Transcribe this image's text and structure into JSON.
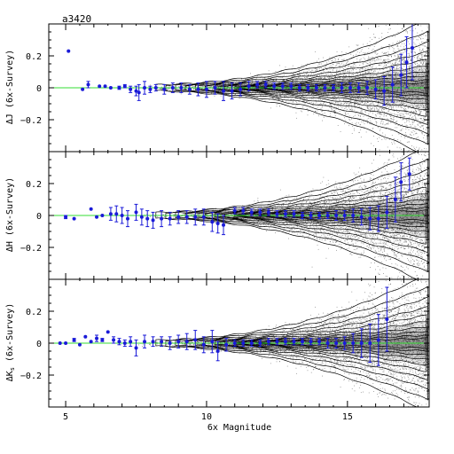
{
  "figure_label": "a3420",
  "colors": {
    "axis": "#000000",
    "points": "#1a1ad8",
    "zero_line": "#33dd33",
    "contour": "#000000",
    "scatter": "#444444"
  },
  "chart_data": [
    {
      "type": "scatter",
      "ylabel": "ΔJ (6x-Survey)",
      "xlim": [
        4.4,
        17.9
      ],
      "ylim": [
        -0.4,
        0.4
      ],
      "yticks": [
        -0.2,
        0,
        0.2
      ],
      "ytick_labels": [
        "−0.2",
        "0",
        "0.2"
      ],
      "reference_line": 0,
      "series": [
        {
          "x": [
            5.1,
            5.6,
            5.8,
            6.2,
            6.4,
            6.6,
            6.9,
            7.1,
            7.3,
            7.5,
            7.6,
            7.8,
            8.0,
            8.2,
            8.5,
            8.8,
            9.1,
            9.4,
            9.7,
            10.0,
            10.3,
            10.6,
            10.9,
            11.2,
            11.5,
            11.8,
            12.1,
            12.4,
            12.7,
            13.0,
            13.3,
            13.6,
            13.9,
            14.2,
            14.5,
            14.8,
            15.1,
            15.4,
            15.7,
            16.0,
            16.3,
            16.6,
            16.9,
            17.1,
            17.3
          ],
          "y": [
            0.23,
            -0.01,
            0.02,
            0.01,
            0.01,
            0.0,
            0.0,
            0.01,
            -0.01,
            -0.02,
            -0.03,
            0.0,
            -0.01,
            0.0,
            -0.01,
            0.0,
            0.0,
            -0.01,
            -0.01,
            -0.01,
            0.0,
            -0.02,
            -0.02,
            -0.01,
            0.01,
            0.02,
            0.02,
            0.01,
            0.01,
            0.01,
            0.0,
            0.0,
            0.0,
            0.0,
            0.0,
            0.0,
            0.0,
            0.0,
            0.0,
            -0.01,
            -0.02,
            0.02,
            0.08,
            0.16,
            0.25
          ],
          "yerr": [
            0.0,
            0.0,
            0.02,
            0.0,
            0.0,
            0.0,
            0.01,
            0.01,
            0.02,
            0.03,
            0.05,
            0.04,
            0.02,
            0.02,
            0.03,
            0.03,
            0.03,
            0.03,
            0.04,
            0.05,
            0.04,
            0.06,
            0.05,
            0.04,
            0.03,
            0.02,
            0.02,
            0.02,
            0.02,
            0.02,
            0.02,
            0.02,
            0.02,
            0.02,
            0.02,
            0.03,
            0.03,
            0.03,
            0.04,
            0.06,
            0.09,
            0.11,
            0.13,
            0.16,
            0.2
          ]
        }
      ]
    },
    {
      "type": "scatter",
      "ylabel": "ΔH (6x-Survey)",
      "xlim": [
        4.4,
        17.9
      ],
      "ylim": [
        -0.4,
        0.4
      ],
      "yticks": [
        -0.2,
        0,
        0.2
      ],
      "ytick_labels": [
        "−0.2",
        "0",
        "0.2"
      ],
      "reference_line": 0,
      "series": [
        {
          "x": [
            5.0,
            5.3,
            5.9,
            6.1,
            6.3,
            6.6,
            6.8,
            7.0,
            7.2,
            7.5,
            7.7,
            7.9,
            8.1,
            8.4,
            8.7,
            9.0,
            9.3,
            9.6,
            9.9,
            10.2,
            10.4,
            10.6,
            11.0,
            11.3,
            11.6,
            11.9,
            12.2,
            12.5,
            12.8,
            13.1,
            13.4,
            13.7,
            14.0,
            14.3,
            14.6,
            14.9,
            15.2,
            15.5,
            15.8,
            16.1,
            16.4,
            16.7,
            16.9,
            17.2
          ],
          "y": [
            -0.01,
            -0.02,
            0.04,
            -0.01,
            0.0,
            0.01,
            0.01,
            0.0,
            -0.02,
            0.02,
            -0.01,
            -0.02,
            -0.03,
            -0.02,
            -0.02,
            -0.01,
            -0.01,
            -0.01,
            -0.01,
            -0.04,
            -0.05,
            -0.06,
            0.03,
            0.03,
            0.02,
            0.02,
            0.02,
            0.01,
            0.01,
            0.01,
            0.0,
            0.0,
            0.0,
            0.0,
            0.0,
            0.0,
            0.0,
            -0.01,
            -0.02,
            -0.02,
            0.02,
            0.1,
            0.21,
            0.26
          ],
          "yerr": [
            0.01,
            0.0,
            0.0,
            0.0,
            0.0,
            0.04,
            0.05,
            0.05,
            0.05,
            0.05,
            0.05,
            0.05,
            0.05,
            0.05,
            0.04,
            0.04,
            0.04,
            0.05,
            0.05,
            0.06,
            0.06,
            0.06,
            0.02,
            0.02,
            0.02,
            0.02,
            0.02,
            0.02,
            0.02,
            0.02,
            0.02,
            0.02,
            0.02,
            0.02,
            0.03,
            0.03,
            0.04,
            0.05,
            0.07,
            0.08,
            0.1,
            0.14,
            0.12,
            0.1
          ]
        }
      ]
    },
    {
      "type": "scatter",
      "ylabel": "ΔK_s (6x-Survey)",
      "xlabel": "6x Magnitude",
      "xlim": [
        4.4,
        17.9
      ],
      "ylim": [
        -0.4,
        0.4
      ],
      "xticks": [
        5,
        10,
        15
      ],
      "xtick_labels": [
        "5",
        "10",
        "15"
      ],
      "yticks": [
        -0.2,
        0,
        0.2
      ],
      "ytick_labels": [
        "−0.2",
        "0",
        "0.2"
      ],
      "reference_line": 0,
      "series": [
        {
          "x": [
            4.8,
            5.0,
            5.3,
            5.5,
            5.7,
            5.9,
            6.1,
            6.3,
            6.5,
            6.7,
            6.9,
            7.1,
            7.3,
            7.5,
            7.8,
            8.1,
            8.4,
            8.7,
            9.0,
            9.3,
            9.6,
            9.9,
            10.2,
            10.4,
            10.7,
            11.0,
            11.3,
            11.6,
            11.9,
            12.2,
            12.5,
            12.8,
            13.1,
            13.4,
            13.7,
            14.0,
            14.3,
            14.6,
            14.9,
            15.2,
            15.5,
            15.8,
            16.1,
            16.4
          ],
          "y": [
            0.0,
            0.0,
            0.02,
            -0.01,
            0.04,
            0.01,
            0.03,
            0.02,
            0.07,
            0.02,
            0.01,
            0.0,
            0.01,
            -0.03,
            0.01,
            0.01,
            0.01,
            0.0,
            0.01,
            0.01,
            0.02,
            -0.01,
            0.01,
            -0.05,
            -0.01,
            0.0,
            0.0,
            0.0,
            0.0,
            0.01,
            0.01,
            0.01,
            0.01,
            0.01,
            0.01,
            0.01,
            0.0,
            0.0,
            0.0,
            0.0,
            0.0,
            0.0,
            0.02,
            0.15
          ],
          "yerr": [
            0.0,
            0.0,
            0.01,
            0.0,
            0.0,
            0.0,
            0.02,
            0.01,
            0.0,
            0.02,
            0.02,
            0.02,
            0.03,
            0.05,
            0.04,
            0.03,
            0.03,
            0.04,
            0.04,
            0.05,
            0.06,
            0.05,
            0.07,
            0.06,
            0.04,
            0.02,
            0.02,
            0.02,
            0.02,
            0.02,
            0.02,
            0.02,
            0.02,
            0.02,
            0.02,
            0.02,
            0.03,
            0.03,
            0.04,
            0.06,
            0.09,
            0.12,
            0.16,
            0.2
          ]
        }
      ]
    }
  ]
}
